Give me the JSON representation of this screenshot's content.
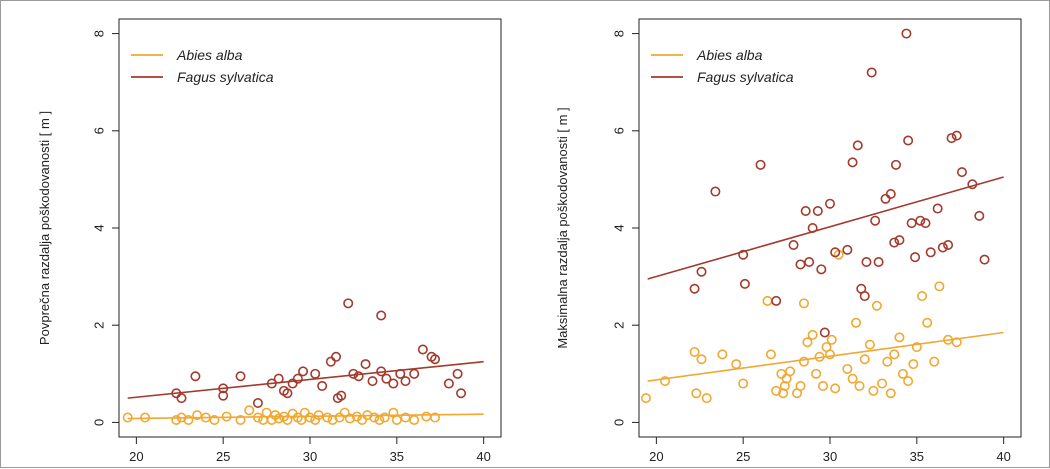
{
  "chart_data": [
    {
      "type": "scatter",
      "ylabel": "Povprečna razdalja poškodovanosti [ m ]",
      "xlabel": "",
      "xlim": [
        19,
        41
      ],
      "ylim": [
        -0.3,
        8.3
      ],
      "xticks": [
        20,
        25,
        30,
        35,
        40
      ],
      "yticks": [
        0,
        2,
        4,
        6,
        8
      ],
      "grid": false,
      "legend_position": "top-left",
      "series": [
        {
          "name": "Abies alba",
          "color": "#f0a832",
          "points": [
            [
              19.5,
              0.1
            ],
            [
              20.5,
              0.1
            ],
            [
              22.3,
              0.05
            ],
            [
              22.6,
              0.1
            ],
            [
              23,
              0.05
            ],
            [
              23.5,
              0.15
            ],
            [
              24,
              0.1
            ],
            [
              24.5,
              0.05
            ],
            [
              25.2,
              0.12
            ],
            [
              26,
              0.05
            ],
            [
              26.5,
              0.25
            ],
            [
              27,
              0.1
            ],
            [
              27.3,
              0.05
            ],
            [
              27.5,
              0.2
            ],
            [
              27.8,
              0.05
            ],
            [
              28,
              0.15
            ],
            [
              28.2,
              0.08
            ],
            [
              28.5,
              0.12
            ],
            [
              28.7,
              0.05
            ],
            [
              29,
              0.18
            ],
            [
              29.3,
              0.1
            ],
            [
              29.5,
              0.05
            ],
            [
              29.7,
              0.2
            ],
            [
              30,
              0.1
            ],
            [
              30.3,
              0.05
            ],
            [
              30.5,
              0.15
            ],
            [
              31,
              0.1
            ],
            [
              31.3,
              0.05
            ],
            [
              31.7,
              0.1
            ],
            [
              32,
              0.2
            ],
            [
              32.3,
              0.08
            ],
            [
              32.7,
              0.12
            ],
            [
              33,
              0.05
            ],
            [
              33.3,
              0.15
            ],
            [
              33.7,
              0.1
            ],
            [
              34,
              0.05
            ],
            [
              34.3,
              0.1
            ],
            [
              34.8,
              0.2
            ],
            [
              35,
              0.05
            ],
            [
              35.5,
              0.1
            ],
            [
              36,
              0.05
            ],
            [
              36.7,
              0.12
            ],
            [
              37.2,
              0.1
            ]
          ],
          "trend": [
            [
              19.5,
              0.08
            ],
            [
              40,
              0.17
            ]
          ]
        },
        {
          "name": "Fagus sylvatica",
          "color": "#a33a2c",
          "points": [
            [
              22.3,
              0.6
            ],
            [
              22.6,
              0.5
            ],
            [
              23.4,
              0.95
            ],
            [
              25,
              0.55
            ],
            [
              25,
              0.7
            ],
            [
              26,
              0.95
            ],
            [
              27,
              0.4
            ],
            [
              27.8,
              0.8
            ],
            [
              28.2,
              0.9
            ],
            [
              28.5,
              0.65
            ],
            [
              28.7,
              0.6
            ],
            [
              29,
              0.8
            ],
            [
              29.3,
              0.9
            ],
            [
              29.6,
              1.05
            ],
            [
              30.3,
              1.0
            ],
            [
              30.7,
              0.75
            ],
            [
              31.2,
              1.25
            ],
            [
              31.5,
              1.35
            ],
            [
              31.6,
              0.5
            ],
            [
              31.8,
              0.55
            ],
            [
              32.2,
              2.45
            ],
            [
              32.5,
              1.0
            ],
            [
              32.8,
              0.95
            ],
            [
              33.2,
              1.2
            ],
            [
              33.6,
              0.85
            ],
            [
              34.1,
              2.2
            ],
            [
              34.1,
              1.05
            ],
            [
              34.4,
              0.9
            ],
            [
              34.8,
              0.8
            ],
            [
              35.2,
              1.0
            ],
            [
              35.5,
              0.85
            ],
            [
              36,
              1.0
            ],
            [
              36.5,
              1.5
            ],
            [
              37,
              1.35
            ],
            [
              37.2,
              1.3
            ],
            [
              38,
              0.8
            ],
            [
              38.5,
              1.0
            ],
            [
              38.7,
              0.6
            ]
          ],
          "trend": [
            [
              19.5,
              0.5
            ],
            [
              40,
              1.25
            ]
          ]
        }
      ]
    },
    {
      "type": "scatter",
      "ylabel": "Maksimalna razdalja poškodovanosti [ m ]",
      "xlabel": "",
      "xlim": [
        19,
        41
      ],
      "ylim": [
        -0.3,
        8.3
      ],
      "xticks": [
        20,
        25,
        30,
        35,
        40
      ],
      "yticks": [
        0,
        2,
        4,
        6,
        8
      ],
      "grid": false,
      "legend_position": "top-left",
      "series": [
        {
          "name": "Abies alba",
          "color": "#f0a832",
          "points": [
            [
              19.4,
              0.5
            ],
            [
              20.5,
              0.85
            ],
            [
              22.2,
              1.45
            ],
            [
              22.3,
              0.6
            ],
            [
              22.6,
              1.3
            ],
            [
              22.9,
              0.5
            ],
            [
              23.8,
              1.4
            ],
            [
              24.6,
              1.2
            ],
            [
              25,
              0.8
            ],
            [
              26.4,
              2.5
            ],
            [
              26.6,
              1.4
            ],
            [
              26.9,
              0.65
            ],
            [
              27.2,
              1.0
            ],
            [
              27.3,
              0.6
            ],
            [
              27.4,
              0.75
            ],
            [
              27.5,
              0.9
            ],
            [
              27.7,
              1.05
            ],
            [
              28.1,
              0.6
            ],
            [
              28.3,
              0.75
            ],
            [
              28.5,
              1.25
            ],
            [
              28.5,
              2.45
            ],
            [
              28.7,
              1.65
            ],
            [
              29,
              1.8
            ],
            [
              29.2,
              1.0
            ],
            [
              29.4,
              1.35
            ],
            [
              29.6,
              0.75
            ],
            [
              29.8,
              1.55
            ],
            [
              30,
              1.4
            ],
            [
              30.1,
              1.7
            ],
            [
              30.3,
              0.7
            ],
            [
              30.5,
              3.45
            ],
            [
              31,
              1.1
            ],
            [
              31.3,
              0.9
            ],
            [
              31.5,
              2.05
            ],
            [
              31.7,
              0.75
            ],
            [
              32,
              1.3
            ],
            [
              32.3,
              1.6
            ],
            [
              32.5,
              0.65
            ],
            [
              32.7,
              2.4
            ],
            [
              33,
              0.8
            ],
            [
              33.3,
              1.25
            ],
            [
              33.5,
              0.6
            ],
            [
              33.7,
              1.4
            ],
            [
              34,
              1.75
            ],
            [
              34.2,
              1.0
            ],
            [
              34.5,
              0.85
            ],
            [
              34.8,
              1.2
            ],
            [
              35,
              1.55
            ],
            [
              35.3,
              2.6
            ],
            [
              35.6,
              2.05
            ],
            [
              36,
              1.25
            ],
            [
              36.3,
              2.8
            ],
            [
              36.8,
              1.7
            ],
            [
              37.3,
              1.65
            ]
          ],
          "trend": [
            [
              19.5,
              0.85
            ],
            [
              40,
              1.85
            ]
          ]
        },
        {
          "name": "Fagus sylvatica",
          "color": "#a33a2c",
          "points": [
            [
              22.2,
              2.75
            ],
            [
              22.6,
              3.1
            ],
            [
              23.4,
              4.75
            ],
            [
              25,
              3.45
            ],
            [
              25.1,
              2.85
            ],
            [
              26,
              5.3
            ],
            [
              26.9,
              2.5
            ],
            [
              27.9,
              3.65
            ],
            [
              28.3,
              3.25
            ],
            [
              28.6,
              4.35
            ],
            [
              28.8,
              3.3
            ],
            [
              29,
              4.0
            ],
            [
              29.3,
              4.35
            ],
            [
              29.5,
              3.15
            ],
            [
              29.7,
              1.85
            ],
            [
              30,
              4.5
            ],
            [
              30.3,
              3.5
            ],
            [
              31,
              3.55
            ],
            [
              31.3,
              5.35
            ],
            [
              31.6,
              5.7
            ],
            [
              31.8,
              2.75
            ],
            [
              32,
              2.6
            ],
            [
              32.1,
              3.3
            ],
            [
              32.4,
              7.2
            ],
            [
              32.6,
              4.15
            ],
            [
              32.8,
              3.3
            ],
            [
              33.2,
              4.6
            ],
            [
              33.5,
              4.7
            ],
            [
              33.7,
              3.7
            ],
            [
              33.8,
              5.3
            ],
            [
              34,
              3.75
            ],
            [
              34.4,
              8.0
            ],
            [
              34.5,
              5.8
            ],
            [
              34.7,
              4.1
            ],
            [
              34.9,
              3.4
            ],
            [
              35.2,
              4.15
            ],
            [
              35.5,
              4.1
            ],
            [
              35.8,
              3.5
            ],
            [
              36.2,
              4.4
            ],
            [
              36.5,
              3.6
            ],
            [
              36.8,
              3.65
            ],
            [
              37,
              5.85
            ],
            [
              37.3,
              5.9
            ],
            [
              37.6,
              5.15
            ],
            [
              38.2,
              4.9
            ],
            [
              38.6,
              4.25
            ],
            [
              38.9,
              3.35
            ]
          ],
          "trend": [
            [
              19.5,
              2.95
            ],
            [
              40,
              5.05
            ]
          ]
        }
      ]
    }
  ]
}
